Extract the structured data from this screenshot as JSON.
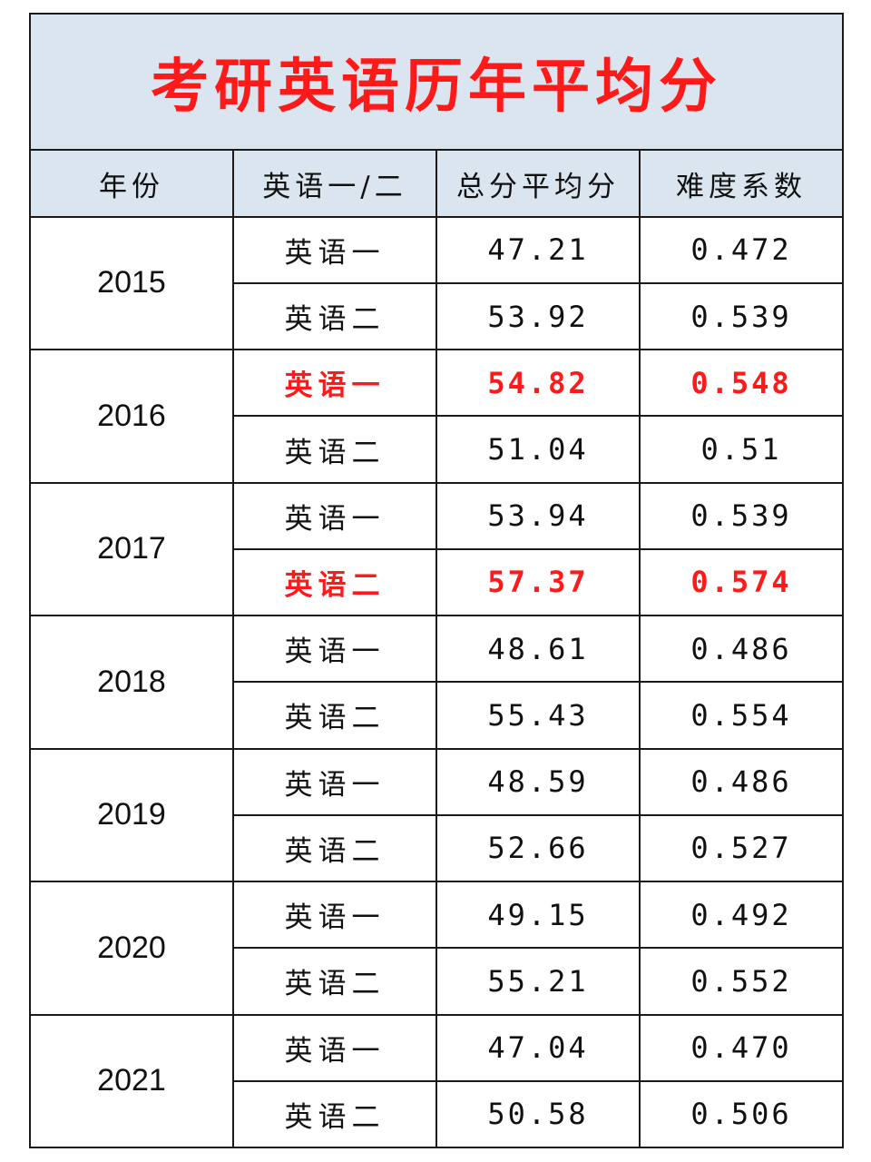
{
  "title": "考研英语历年平均分",
  "accent_color": "#ff1a1a",
  "header_bg": "#dae5f0",
  "columns": [
    "年份",
    "英语一/二",
    "总分平均分",
    "难度系数"
  ],
  "years": [
    {
      "year": "2015",
      "rows": [
        {
          "type": "英语一",
          "avg": "47.21",
          "difficulty": "0.472",
          "highlight": false
        },
        {
          "type": "英语二",
          "avg": "53.92",
          "difficulty": "0.539",
          "highlight": false
        }
      ]
    },
    {
      "year": "2016",
      "rows": [
        {
          "type": "英语一",
          "avg": "54.82",
          "difficulty": "0.548",
          "highlight": true
        },
        {
          "type": "英语二",
          "avg": "51.04",
          "difficulty": "0.51",
          "highlight": false
        }
      ]
    },
    {
      "year": "2017",
      "rows": [
        {
          "type": "英语一",
          "avg": "53.94",
          "difficulty": "0.539",
          "highlight": false
        },
        {
          "type": "英语二",
          "avg": "57.37",
          "difficulty": "0.574",
          "highlight": true
        }
      ]
    },
    {
      "year": "2018",
      "rows": [
        {
          "type": "英语一",
          "avg": "48.61",
          "difficulty": "0.486",
          "highlight": false
        },
        {
          "type": "英语二",
          "avg": "55.43",
          "difficulty": "0.554",
          "highlight": false
        }
      ]
    },
    {
      "year": "2019",
      "rows": [
        {
          "type": "英语一",
          "avg": "48.59",
          "difficulty": "0.486",
          "highlight": false
        },
        {
          "type": "英语二",
          "avg": "52.66",
          "difficulty": "0.527",
          "highlight": false
        }
      ]
    },
    {
      "year": "2020",
      "rows": [
        {
          "type": "英语一",
          "avg": "49.15",
          "difficulty": "0.492",
          "highlight": false
        },
        {
          "type": "英语二",
          "avg": "55.21",
          "difficulty": "0.552",
          "highlight": false
        }
      ]
    },
    {
      "year": "2021",
      "rows": [
        {
          "type": "英语一",
          "avg": "47.04",
          "difficulty": "0.470",
          "highlight": false
        },
        {
          "type": "英语二",
          "avg": "50.58",
          "difficulty": "0.506",
          "highlight": false
        }
      ]
    }
  ]
}
